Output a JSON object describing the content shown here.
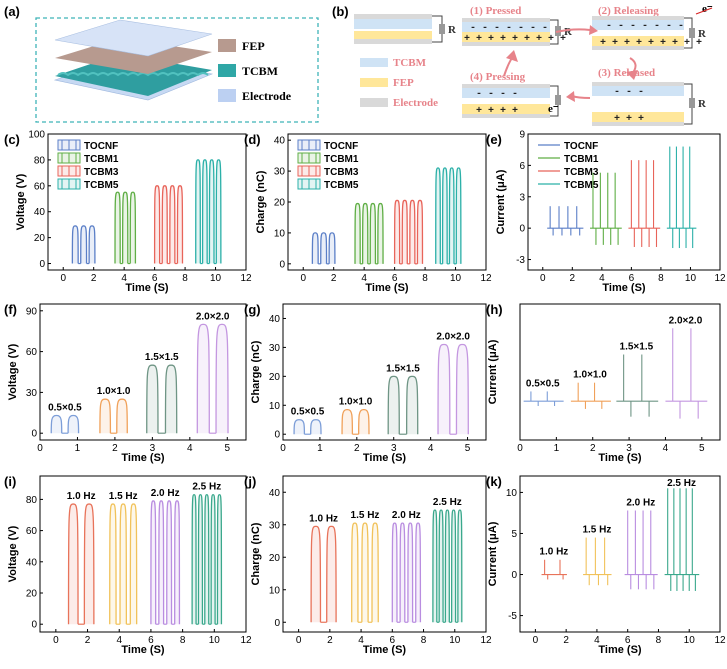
{
  "panel_a": {
    "label": "(a)",
    "legend": [
      {
        "name": "FEP",
        "color": "#b79a8f"
      },
      {
        "name": "TCBM",
        "color": "#2fa7a6"
      },
      {
        "name": "Electrode",
        "color": "#bcd0f2"
      }
    ]
  },
  "panel_b": {
    "label": "(b)",
    "resistor": "R",
    "electron": "e⁻",
    "legend": [
      {
        "name": "TCBM",
        "color": "#ffe79a"
      },
      {
        "name": "FEP",
        "color": "#cfe3f5"
      },
      {
        "name": "Electrode",
        "color": "#d9d9d9"
      }
    ],
    "steps": [
      "(1) Pressed",
      "(2) Releasing",
      "(3) Released",
      "(4) Pressing"
    ],
    "charge_signs": {
      "minus_row": "- - - - - - -",
      "plus_row": "+ + + + + + + + +",
      "minus_short": "- - -",
      "plus_short": "+ + +",
      "minus_4": "- - - -",
      "plus_4": "+ + + +"
    }
  },
  "chart_data": [
    {
      "id": "c",
      "label": "(c)",
      "type": "line",
      "ylabel": "Voltage (V)",
      "xlabel": "Time (S)",
      "xlim": [
        -1,
        12
      ],
      "ylim": [
        -5,
        100
      ],
      "xticks": [
        0,
        2,
        4,
        6,
        8,
        10,
        12
      ],
      "yticks": [
        0,
        20,
        40,
        60,
        80,
        100
      ],
      "legend": [
        "TOCNF",
        "TCBM1",
        "TCBM3",
        "TCBM5"
      ],
      "series": [
        {
          "name": "TOCNF",
          "color": "#5b7fc7",
          "start": 0.6,
          "period": 0.55,
          "count": 3,
          "width": 0.38,
          "amp": 29,
          "base": 0
        },
        {
          "name": "TCBM1",
          "color": "#5fae45",
          "start": 3.4,
          "period": 0.5,
          "count": 3,
          "width": 0.34,
          "amp": 55,
          "base": 0
        },
        {
          "name": "TCBM3",
          "color": "#e8645a",
          "start": 6.0,
          "period": 0.5,
          "count": 4,
          "width": 0.33,
          "amp": 60,
          "base": 0
        },
        {
          "name": "TCBM5",
          "color": "#2bb0a8",
          "start": 8.7,
          "period": 0.45,
          "count": 4,
          "width": 0.3,
          "amp": 80,
          "base": 0
        }
      ]
    },
    {
      "id": "d",
      "label": "(d)",
      "type": "line",
      "ylabel": "Charge (nC)",
      "xlabel": "Time (S)",
      "xlim": [
        -1,
        12
      ],
      "ylim": [
        -2,
        42
      ],
      "xticks": [
        0,
        2,
        4,
        6,
        8,
        10,
        12
      ],
      "yticks": [
        0,
        10,
        20,
        30,
        40
      ],
      "legend": [
        "TOCNF",
        "TCBM1",
        "TCBM3",
        "TCBM5"
      ],
      "series": [
        {
          "name": "TOCNF",
          "color": "#5b7fc7",
          "start": 0.6,
          "period": 0.55,
          "count": 3,
          "width": 0.38,
          "amp": 10,
          "base": 0
        },
        {
          "name": "TCBM1",
          "color": "#5fae45",
          "start": 3.4,
          "period": 0.5,
          "count": 4,
          "width": 0.34,
          "amp": 19.5,
          "base": 0
        },
        {
          "name": "TCBM3",
          "color": "#e8645a",
          "start": 6.0,
          "period": 0.5,
          "count": 4,
          "width": 0.33,
          "amp": 20.5,
          "base": 0
        },
        {
          "name": "TCBM5",
          "color": "#2bb0a8",
          "start": 8.7,
          "period": 0.45,
          "count": 4,
          "width": 0.3,
          "amp": 31,
          "base": 0
        }
      ]
    },
    {
      "id": "e",
      "label": "(e)",
      "type": "spike",
      "ylabel": "Current (μA)",
      "xlabel": "Time (S)",
      "xlim": [
        -1,
        12
      ],
      "ylim": [
        -4,
        9
      ],
      "xticks": [
        0,
        2,
        4,
        6,
        8,
        10,
        12
      ],
      "yticks": [
        -3,
        0,
        3,
        6,
        9
      ],
      "legend": [
        "TOCNF",
        "TCBM1",
        "TCBM3",
        "TCBM5"
      ],
      "series": [
        {
          "name": "TOCNF",
          "color": "#5b7fc7",
          "start": 0.5,
          "period": 0.6,
          "count": 4,
          "pos": 2.1,
          "neg": -0.7
        },
        {
          "name": "TCBM1",
          "color": "#5fae45",
          "start": 3.4,
          "period": 0.5,
          "count": 4,
          "pos": 5.3,
          "neg": -1.6
        },
        {
          "name": "TCBM3",
          "color": "#e8645a",
          "start": 6.0,
          "period": 0.5,
          "count": 4,
          "pos": 6.5,
          "neg": -1.8
        },
        {
          "name": "TCBM5",
          "color": "#2bb0a8",
          "start": 8.6,
          "period": 0.45,
          "count": 4,
          "pos": 7.8,
          "neg": -1.9
        }
      ]
    },
    {
      "id": "f",
      "label": "(f)",
      "type": "line",
      "ylabel": "Voltage (V)",
      "xlabel": "Time (S)",
      "xlim": [
        0,
        5.5
      ],
      "ylim": [
        -5,
        95
      ],
      "xticks": [
        0,
        1,
        2,
        3,
        4,
        5
      ],
      "yticks": [
        0,
        30,
        60,
        90
      ],
      "series": [
        {
          "name": "0.5×0.5",
          "color": "#7d9ed8",
          "start": 0.3,
          "period": 0.45,
          "count": 2,
          "width": 0.28,
          "amp": 13,
          "base": 0
        },
        {
          "name": "1.0×1.0",
          "color": "#f0a15a",
          "start": 1.6,
          "period": 0.45,
          "count": 2,
          "width": 0.28,
          "amp": 25,
          "base": 0
        },
        {
          "name": "1.5×1.5",
          "color": "#6f9585",
          "start": 2.85,
          "period": 0.5,
          "count": 2,
          "width": 0.3,
          "amp": 50,
          "base": 0
        },
        {
          "name": "2.0×2.0",
          "color": "#c497e0",
          "start": 4.2,
          "period": 0.5,
          "count": 2,
          "width": 0.32,
          "amp": 80,
          "base": 0
        }
      ]
    },
    {
      "id": "g",
      "label": "(g)",
      "type": "line",
      "ylabel": "Charge (nC)",
      "xlabel": "Time (S)",
      "xlim": [
        0,
        5.5
      ],
      "ylim": [
        -2,
        45
      ],
      "xticks": [
        0,
        1,
        2,
        3,
        4,
        5
      ],
      "yticks": [
        0,
        10,
        20,
        30,
        40
      ],
      "series": [
        {
          "name": "0.5×0.5",
          "color": "#7d9ed8",
          "start": 0.3,
          "period": 0.45,
          "count": 2,
          "width": 0.28,
          "amp": 5,
          "base": 0
        },
        {
          "name": "1.0×1.0",
          "color": "#f0a15a",
          "start": 1.6,
          "period": 0.45,
          "count": 2,
          "width": 0.28,
          "amp": 8.5,
          "base": 0
        },
        {
          "name": "1.5×1.5",
          "color": "#6f9585",
          "start": 2.85,
          "period": 0.5,
          "count": 2,
          "width": 0.3,
          "amp": 20,
          "base": 0
        },
        {
          "name": "2.0×2.0",
          "color": "#c497e0",
          "start": 4.2,
          "period": 0.5,
          "count": 2,
          "width": 0.32,
          "amp": 31,
          "base": 0
        }
      ]
    },
    {
      "id": "h",
      "label": "(h)",
      "type": "spike",
      "ylabel": "Current (μA)",
      "xlabel": "Time (S)",
      "xlim": [
        0,
        5.5
      ],
      "ylim": [
        -4,
        10
      ],
      "xticks": [
        0,
        1,
        2,
        3,
        4,
        5
      ],
      "yticks": [],
      "series": [
        {
          "name": "0.5×0.5",
          "color": "#7d9ed8",
          "start": 0.3,
          "period": 0.45,
          "count": 2,
          "pos": 1.0,
          "neg": -0.5
        },
        {
          "name": "1.0×1.0",
          "color": "#f0a15a",
          "start": 1.6,
          "period": 0.45,
          "count": 2,
          "pos": 1.9,
          "neg": -0.8
        },
        {
          "name": "1.5×1.5",
          "color": "#6f9585",
          "start": 2.85,
          "period": 0.5,
          "count": 2,
          "pos": 4.8,
          "neg": -1.6
        },
        {
          "name": "2.0×2.0",
          "color": "#c497e0",
          "start": 4.2,
          "period": 0.5,
          "count": 2,
          "pos": 7.5,
          "neg": -1.8
        }
      ]
    },
    {
      "id": "i",
      "label": "(i)",
      "type": "line",
      "ylabel": "Voltage (V)",
      "xlabel": "Time (S)",
      "xlim": [
        -1,
        12
      ],
      "ylim": [
        -5,
        95
      ],
      "xticks": [
        0,
        2,
        4,
        6,
        8,
        10,
        12
      ],
      "yticks": [
        0,
        20,
        40,
        60,
        80
      ],
      "series": [
        {
          "name": "1.0 Hz",
          "color": "#e8735a",
          "start": 0.8,
          "period": 1.0,
          "count": 2,
          "width": 0.6,
          "amp": 77,
          "base": 0
        },
        {
          "name": "1.5 Hz",
          "color": "#f1c25a",
          "start": 3.4,
          "period": 0.65,
          "count": 3,
          "width": 0.4,
          "amp": 77,
          "base": 0
        },
        {
          "name": "2.0 Hz",
          "color": "#b98de0",
          "start": 6.0,
          "period": 0.5,
          "count": 4,
          "width": 0.3,
          "amp": 79,
          "base": 0
        },
        {
          "name": "2.5 Hz",
          "color": "#3aa88c",
          "start": 8.6,
          "period": 0.4,
          "count": 5,
          "width": 0.25,
          "amp": 83,
          "base": 0
        }
      ]
    },
    {
      "id": "j",
      "label": "(j)",
      "type": "line",
      "ylabel": "Charge (nC)",
      "xlabel": "Time (S)",
      "xlim": [
        -1,
        12
      ],
      "ylim": [
        -3,
        45
      ],
      "xticks": [
        0,
        2,
        4,
        6,
        8,
        10,
        12
      ],
      "yticks": [
        0,
        10,
        20,
        30,
        40
      ],
      "series": [
        {
          "name": "1.0 Hz",
          "color": "#e8735a",
          "start": 0.8,
          "period": 1.0,
          "count": 2,
          "width": 0.6,
          "amp": 29.5,
          "base": 0
        },
        {
          "name": "1.5 Hz",
          "color": "#f1c25a",
          "start": 3.4,
          "period": 0.65,
          "count": 3,
          "width": 0.4,
          "amp": 30.5,
          "base": 0
        },
        {
          "name": "2.0 Hz",
          "color": "#b98de0",
          "start": 6.0,
          "period": 0.5,
          "count": 4,
          "width": 0.3,
          "amp": 30.5,
          "base": 0
        },
        {
          "name": "2.5 Hz",
          "color": "#3aa88c",
          "start": 8.6,
          "period": 0.4,
          "count": 5,
          "width": 0.25,
          "amp": 34.5,
          "base": 0
        }
      ]
    },
    {
      "id": "k",
      "label": "(k)",
      "type": "spike",
      "ylabel": "Current (μA)",
      "xlabel": "Time (S)",
      "xlim": [
        -1,
        12
      ],
      "ylim": [
        -7,
        12
      ],
      "xticks": [
        0,
        2,
        4,
        6,
        8,
        10,
        12
      ],
      "yticks": [
        -5,
        0,
        5,
        10
      ],
      "series": [
        {
          "name": "1.0 Hz",
          "color": "#e8735a",
          "start": 0.6,
          "period": 1.0,
          "count": 2,
          "pos": 1.8,
          "neg": -0.6
        },
        {
          "name": "1.5 Hz",
          "color": "#f1c25a",
          "start": 3.3,
          "period": 0.6,
          "count": 3,
          "pos": 4.5,
          "neg": -1.3
        },
        {
          "name": "2.0 Hz",
          "color": "#b98de0",
          "start": 6.0,
          "period": 0.5,
          "count": 4,
          "pos": 7.8,
          "neg": -1.8
        },
        {
          "name": "2.5 Hz",
          "color": "#3aa88c",
          "start": 8.6,
          "period": 0.4,
          "count": 5,
          "pos": 10.5,
          "neg": -2.0
        }
      ]
    }
  ]
}
